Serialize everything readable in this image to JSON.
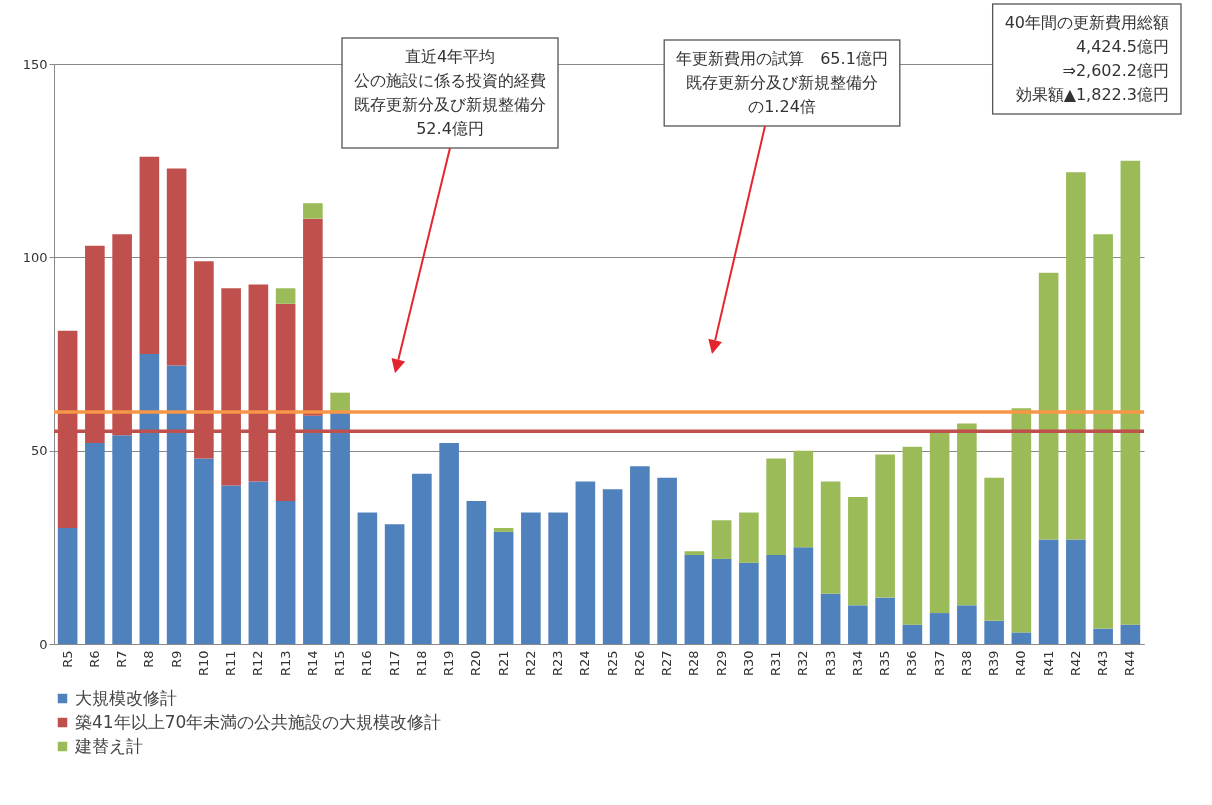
{
  "chart_data": {
    "type": "bar",
    "stacked": true,
    "categories": [
      "R5",
      "R6",
      "R7",
      "R8",
      "R9",
      "R10",
      "R11",
      "R12",
      "R13",
      "R14",
      "R15",
      "R16",
      "R17",
      "R18",
      "R19",
      "R20",
      "R21",
      "R22",
      "R23",
      "R24",
      "R25",
      "R26",
      "R27",
      "R28",
      "R29",
      "R30",
      "R31",
      "R32",
      "R33",
      "R34",
      "R35",
      "R36",
      "R37",
      "R38",
      "R39",
      "R40",
      "R41",
      "R42",
      "R43",
      "R44"
    ],
    "series": [
      {
        "name": "大規模改修計",
        "color": "#4f81bd",
        "values": [
          30,
          52,
          54,
          75,
          72,
          48,
          41,
          42,
          37,
          59,
          60,
          34,
          31,
          44,
          52,
          37,
          29,
          34,
          34,
          42,
          40,
          46,
          43,
          23,
          22,
          21,
          23,
          25,
          13,
          10,
          12,
          5,
          8,
          10,
          6,
          3,
          27,
          27,
          4,
          5
        ]
      },
      {
        "name": "築41年以上70年未満の公共施設の大規模改修計",
        "color": "#c0504d",
        "values": [
          51,
          51,
          52,
          51,
          51,
          51,
          51,
          51,
          51,
          51,
          null,
          null,
          null,
          null,
          null,
          null,
          null,
          null,
          null,
          null,
          null,
          null,
          null,
          null,
          null,
          null,
          null,
          null,
          null,
          null,
          null,
          null,
          null,
          null,
          null,
          null,
          null,
          null,
          null,
          null
        ]
      },
      {
        "name": "建替え計",
        "color": "#9bbb59",
        "values": [
          null,
          null,
          null,
          null,
          null,
          null,
          null,
          null,
          4,
          4,
          5,
          null,
          null,
          null,
          null,
          null,
          1,
          null,
          null,
          null,
          null,
          null,
          null,
          1,
          10,
          13,
          25,
          25,
          29,
          28,
          37,
          46,
          47,
          47,
          37,
          58,
          69,
          95,
          102,
          120
        ]
      }
    ],
    "ylim": [
      0,
      150
    ],
    "yticks": [
      0,
      50,
      100,
      150
    ],
    "grid": "y",
    "legend": "bottom left",
    "ref_lines": [
      {
        "axis": "y",
        "value": 55,
        "color": "#c0504d"
      },
      {
        "axis": "y",
        "value": 60,
        "color": "#f79646"
      }
    ],
    "annotations": [
      "直近4年平均",
      "公の施設に係る投資的経費",
      "既存更新分及び新規整備分",
      "52.4億円",
      "年更新費用の試算　65.1億円",
      "既存更新分及び新規整備分",
      "の1.24倍",
      "40年間の更新費用総額",
      "4,424.5億円",
      "⇒2,602.2億円",
      "効果額▲1,822.3億円"
    ]
  }
}
